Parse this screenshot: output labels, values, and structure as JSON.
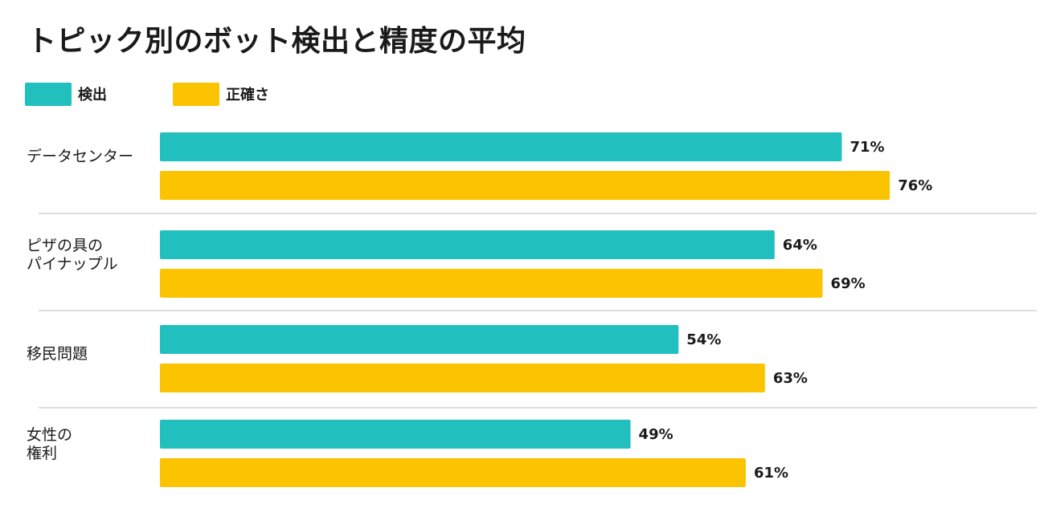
{
  "colors": {
    "detection": "#22bfbf",
    "accuracy": "#fcc300",
    "divider": "#d4d4d4"
  },
  "chart_data": {
    "type": "bar",
    "orientation": "horizontal",
    "title": "トピック別のボット検出と精度の平均",
    "categories": [
      "データセンター",
      "ピザの具の\nパイナップル",
      "移民問題",
      "女性の\n権利"
    ],
    "series": [
      {
        "name": "検出",
        "values": [
          71,
          64,
          54,
          49
        ]
      },
      {
        "name": "正確さ",
        "values": [
          76,
          69,
          63,
          61
        ]
      }
    ],
    "value_suffix": "%",
    "xlim": [
      0,
      100
    ],
    "grid": false,
    "legend_position": "top-left"
  }
}
